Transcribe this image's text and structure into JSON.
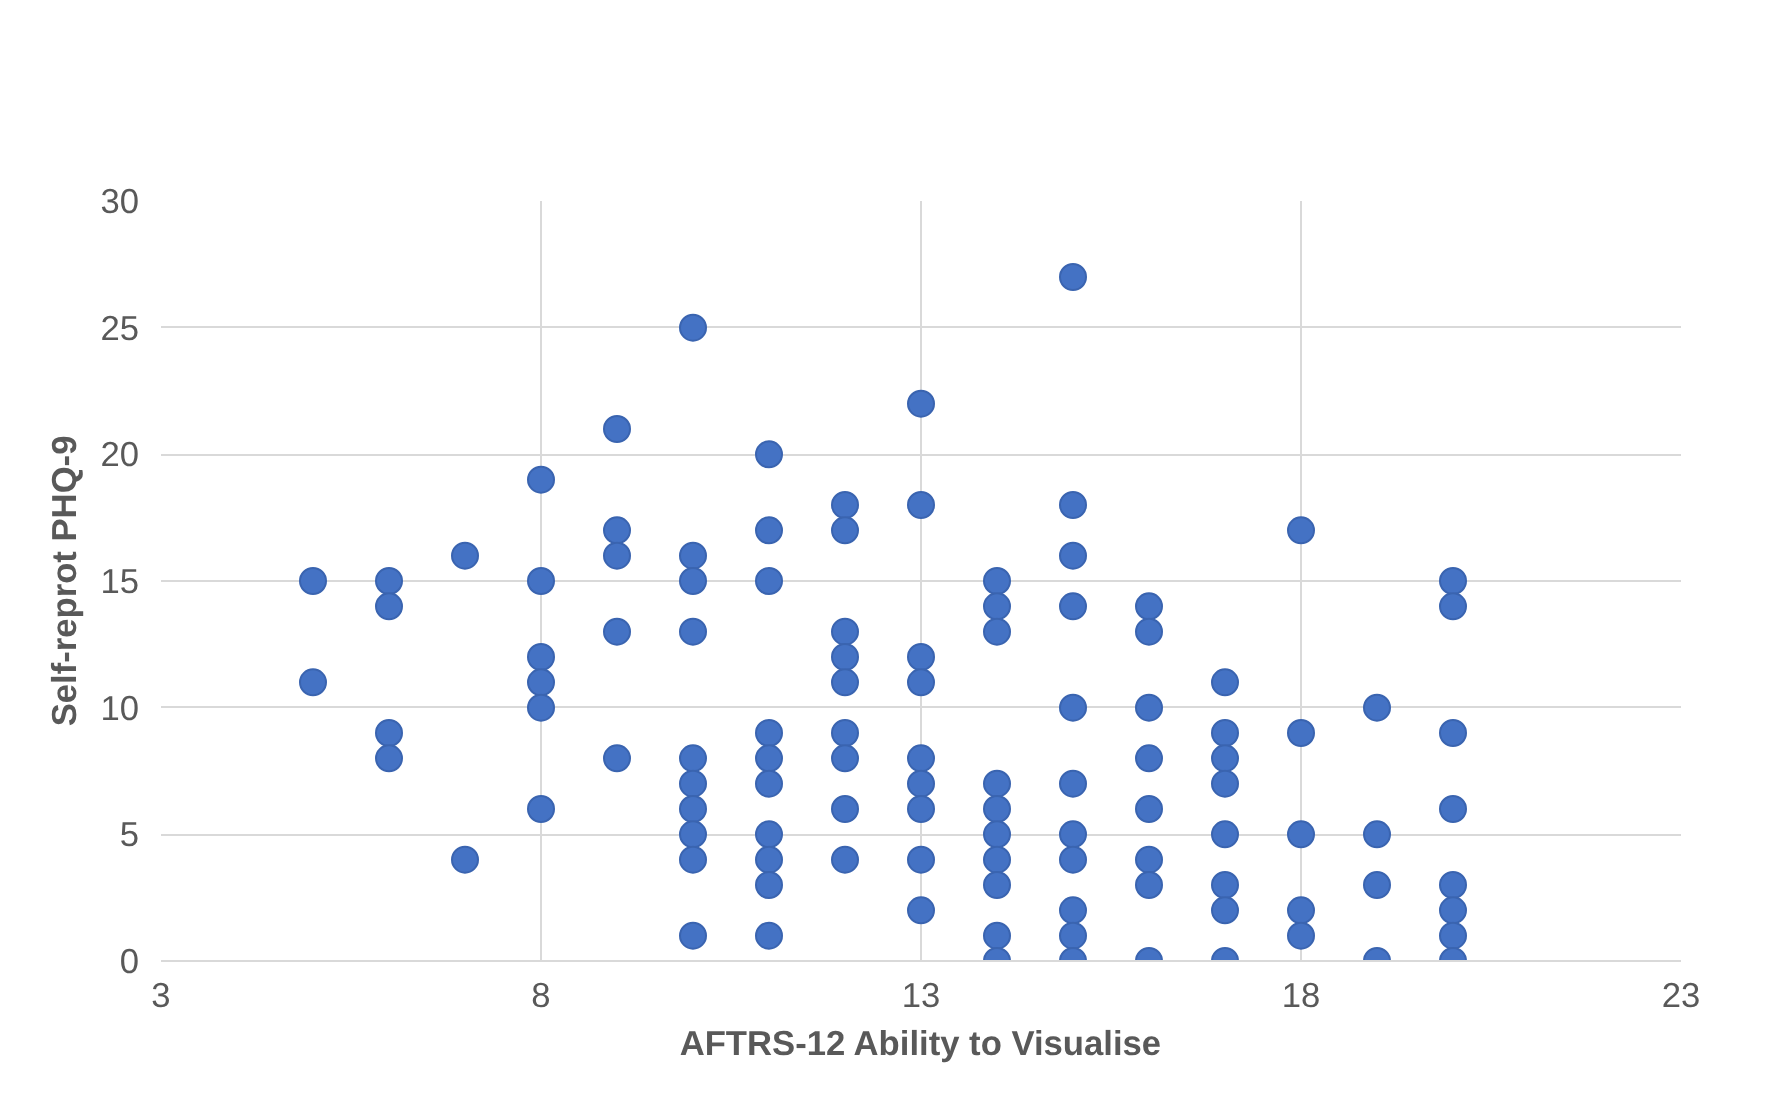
{
  "chart_data": {
    "type": "scatter",
    "xlabel": "AFTRS-12 Ability to Visualise",
    "ylabel": "Self-reprot PHQ-9",
    "xlim": [
      3,
      23
    ],
    "ylim": [
      0,
      30
    ],
    "xticks": [
      3,
      8,
      13,
      18,
      23
    ],
    "yticks": [
      0,
      5,
      10,
      15,
      20,
      25,
      30
    ],
    "grid": true,
    "marker": "circle",
    "series": [
      {
        "color": "#4472c4",
        "x": [
          5,
          5,
          6,
          6,
          6,
          6,
          7,
          7,
          8,
          8,
          8,
          8,
          8,
          8,
          9,
          9,
          9,
          9,
          9,
          10,
          10,
          10,
          10,
          10,
          10,
          10,
          10,
          10,
          10,
          11,
          11,
          11,
          11,
          11,
          11,
          11,
          11,
          11,
          11,
          12,
          12,
          12,
          12,
          12,
          12,
          12,
          12,
          12,
          13,
          13,
          13,
          13,
          13,
          13,
          13,
          13,
          13,
          14,
          14,
          14,
          14,
          14,
          14,
          14,
          14,
          14,
          14,
          15,
          15,
          15,
          15,
          15,
          15,
          15,
          15,
          15,
          15,
          15,
          16,
          16,
          16,
          16,
          16,
          16,
          16,
          16,
          17,
          17,
          17,
          17,
          17,
          17,
          17,
          17,
          18,
          18,
          18,
          18,
          18,
          19,
          19,
          19,
          19,
          20,
          20,
          20,
          20,
          20,
          20,
          20,
          20
        ],
        "values": [
          15,
          11,
          15,
          14,
          9,
          8,
          16,
          4,
          19,
          15,
          12,
          11,
          10,
          6,
          21,
          17,
          16,
          13,
          8,
          25,
          16,
          15,
          13,
          8,
          7,
          6,
          5,
          4,
          1,
          20,
          17,
          15,
          9,
          8,
          7,
          5,
          4,
          3,
          1,
          18,
          17,
          13,
          12,
          11,
          9,
          8,
          6,
          4,
          22,
          18,
          12,
          11,
          8,
          7,
          6,
          4,
          2,
          15,
          14,
          13,
          7,
          6,
          5,
          4,
          3,
          1,
          0,
          27,
          18,
          16,
          14,
          10,
          7,
          5,
          4,
          2,
          1,
          0,
          14,
          13,
          10,
          8,
          6,
          4,
          3,
          0,
          11,
          9,
          8,
          7,
          5,
          3,
          2,
          0,
          17,
          9,
          5,
          2,
          1,
          10,
          5,
          3,
          0,
          15,
          14,
          9,
          6,
          3,
          2,
          1,
          0
        ]
      }
    ]
  }
}
